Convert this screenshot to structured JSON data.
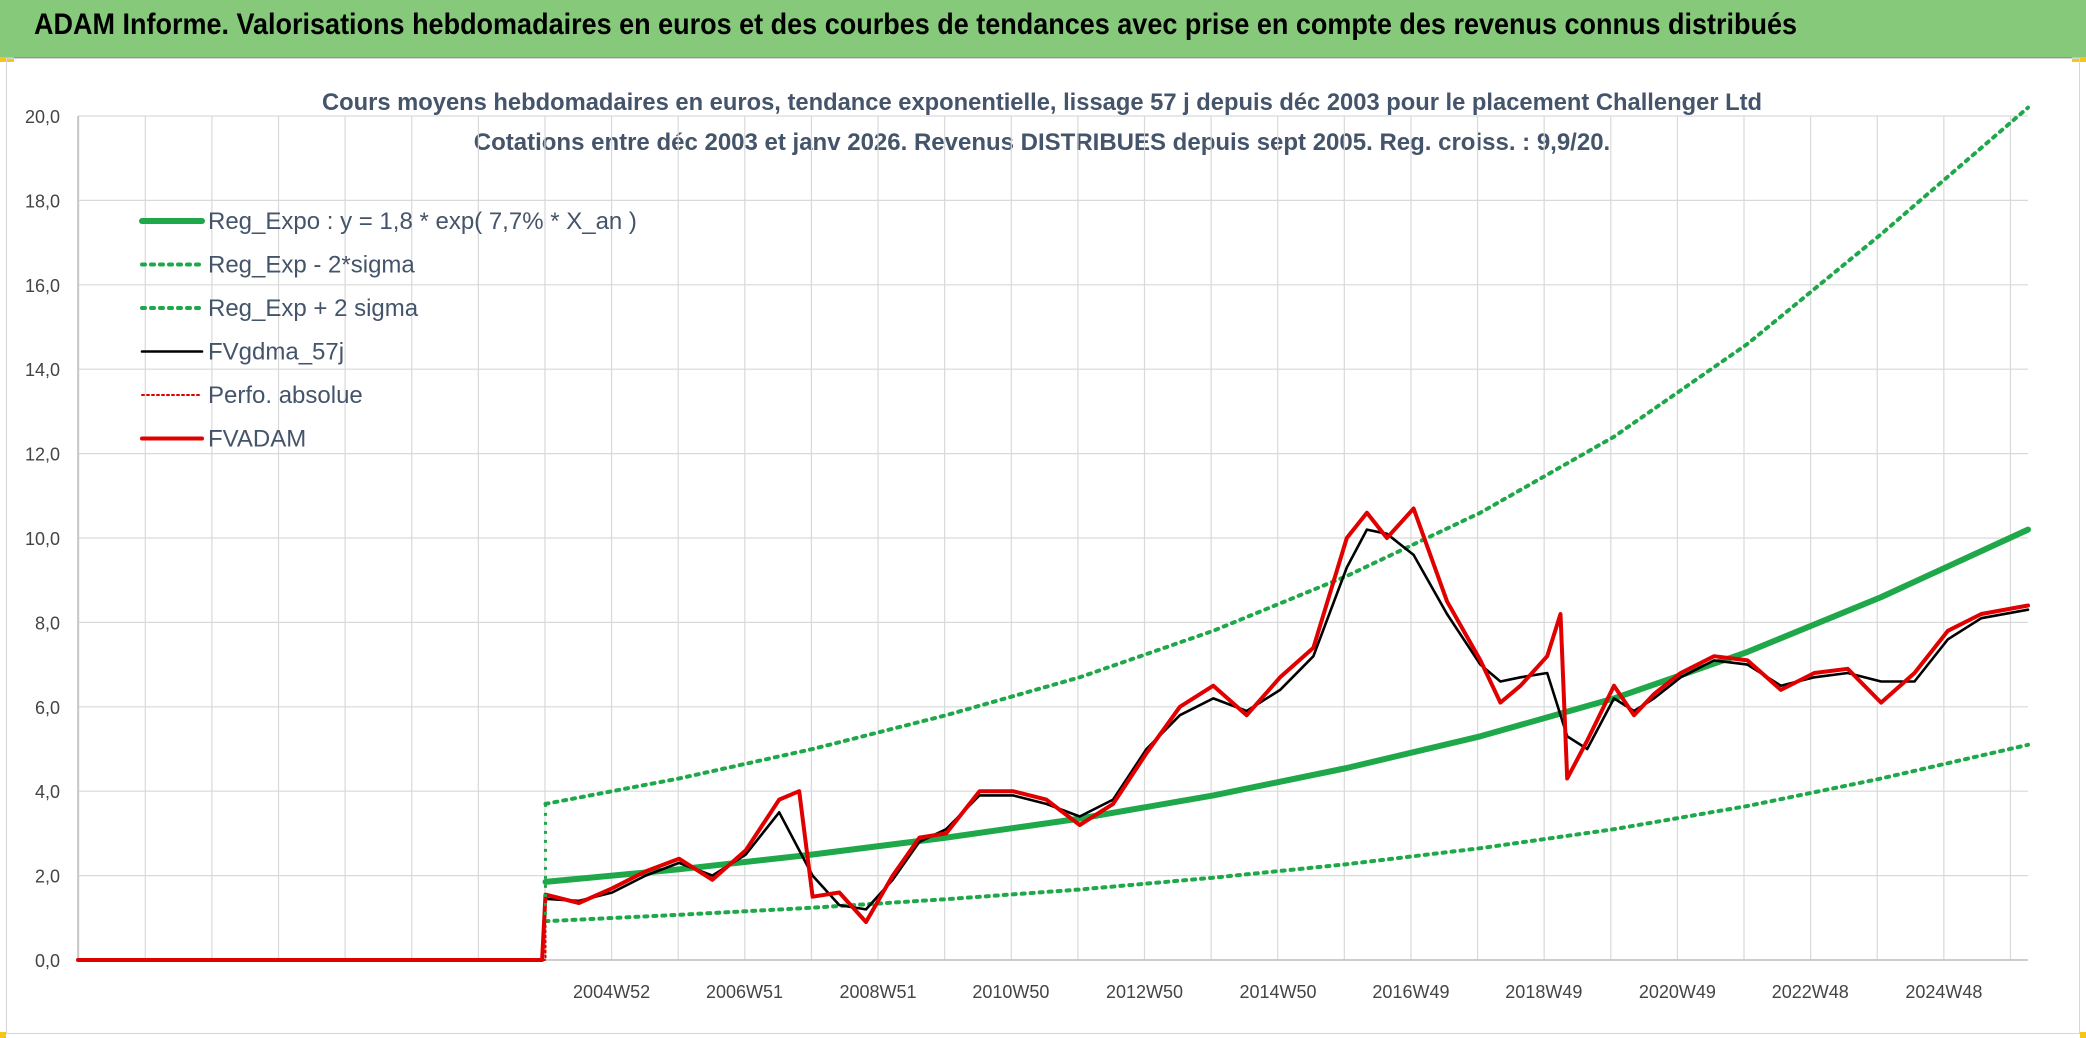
{
  "banner": {
    "title": "ADAM Informe. Valorisations hebdomadaires en euros et des courbes de tendances avec prise en compte des revenus connus distribués"
  },
  "colors": {
    "banner_bg": "#86c97a",
    "reg_expo": "#1fa84a",
    "fvgdma": "#000000",
    "fvadam": "#e00000",
    "perfo": "#e00000",
    "grid": "#d9d9d9"
  },
  "chart_data": {
    "type": "line",
    "title": "Cours moyens hebdomadaires en euros, tendance exponentielle, lissage 57 j depuis déc 2003 pour le placement Challenger Ltd",
    "subtitle": "Cotations entre déc 2003 et janv 2026. Revenus DISTRIBUES depuis sept 2005. Reg. croiss. : 9,9/20.",
    "xlabel": "",
    "ylabel": "",
    "ylim": [
      0,
      20
    ],
    "yticks": [
      "0,0",
      "2,0",
      "4,0",
      "6,0",
      "8,0",
      "10,0",
      "12,0",
      "14,0",
      "16,0",
      "18,0",
      "20,0"
    ],
    "xlim": [
      1997.0,
      2026.2
    ],
    "xtick_labels": [
      "2004W52",
      "2006W51",
      "2008W51",
      "2010W50",
      "2012W50",
      "2014W50",
      "2016W49",
      "2018W49",
      "2020W49",
      "2022W48",
      "2024W48"
    ],
    "xtick_positions": [
      2004.99,
      2006.98,
      2008.98,
      2010.97,
      2012.97,
      2014.97,
      2016.96,
      2018.95,
      2020.95,
      2022.94,
      2024.94
    ],
    "grid": true,
    "legend_position": "top-left",
    "start_year": 2004.0,
    "series": [
      {
        "name": "Reg_Expo : y = 1,8 * exp( 7,7% *  X_an )",
        "style": "solid-thick",
        "color": "#1fa84a",
        "x": [
          2004.0,
          2006.0,
          2008.0,
          2010.0,
          2012.0,
          2014.0,
          2016.0,
          2018.0,
          2020.0,
          2022.0,
          2024.0,
          2026.2
        ],
        "y": [
          1.85,
          2.15,
          2.5,
          2.9,
          3.35,
          3.9,
          4.55,
          5.3,
          6.2,
          7.3,
          8.6,
          10.2
        ]
      },
      {
        "name": "Reg_Exp - 2*sigma",
        "style": "dotted",
        "color": "#1fa84a",
        "x": [
          2004.0,
          2006.0,
          2008.0,
          2010.0,
          2012.0,
          2014.0,
          2016.0,
          2018.0,
          2020.0,
          2022.0,
          2024.0,
          2026.2
        ],
        "y": [
          0.92,
          1.07,
          1.24,
          1.44,
          1.67,
          1.95,
          2.27,
          2.65,
          3.1,
          3.65,
          4.3,
          5.1
        ]
      },
      {
        "name": "Reg_Exp + 2 sigma",
        "style": "dotted",
        "color": "#1fa84a",
        "x": [
          2004.0,
          2006.0,
          2008.0,
          2010.0,
          2012.0,
          2014.0,
          2016.0,
          2018.0,
          2020.0,
          2022.0,
          2024.0,
          2026.2
        ],
        "y": [
          3.7,
          4.3,
          5.0,
          5.8,
          6.7,
          7.8,
          9.1,
          10.6,
          12.4,
          14.6,
          17.2,
          20.2
        ]
      },
      {
        "name": "FVgdma_57j",
        "style": "solid",
        "color": "#000000",
        "x": [
          2004.0,
          2004.5,
          2005.0,
          2005.5,
          2006.0,
          2006.5,
          2007.0,
          2007.5,
          2008.0,
          2008.4,
          2008.8,
          2009.2,
          2009.6,
          2010.0,
          2010.5,
          2011.0,
          2011.5,
          2012.0,
          2012.5,
          2013.0,
          2013.5,
          2014.0,
          2014.5,
          2015.0,
          2015.5,
          2016.0,
          2016.3,
          2016.6,
          2017.0,
          2017.5,
          2018.0,
          2018.3,
          2018.6,
          2019.0,
          2019.3,
          2019.6,
          2020.0,
          2020.3,
          2020.6,
          2021.0,
          2021.5,
          2022.0,
          2022.5,
          2023.0,
          2023.5,
          2024.0,
          2024.5,
          2025.0,
          2025.5,
          2026.2
        ],
        "y": [
          1.45,
          1.4,
          1.6,
          2.0,
          2.3,
          2.0,
          2.5,
          3.5,
          2.0,
          1.3,
          1.2,
          1.9,
          2.8,
          3.1,
          3.9,
          3.9,
          3.7,
          3.4,
          3.8,
          5.0,
          5.8,
          6.2,
          5.9,
          6.4,
          7.2,
          9.3,
          10.2,
          10.1,
          9.6,
          8.2,
          7.0,
          6.6,
          6.7,
          6.8,
          5.3,
          5.0,
          6.2,
          5.9,
          6.2,
          6.7,
          7.1,
          7.0,
          6.5,
          6.7,
          6.8,
          6.6,
          6.6,
          7.6,
          8.1,
          8.3
        ]
      },
      {
        "name": "Perfo. absolue",
        "style": "dotted",
        "color": "#e00000",
        "x": [
          1997.0,
          2004.0,
          2004.0
        ],
        "y": [
          0.0,
          0.0,
          1.5
        ]
      },
      {
        "name": "FVADAM",
        "style": "solid-thick",
        "color": "#e00000",
        "x": [
          1997.0,
          2003.95,
          2004.0,
          2004.5,
          2005.0,
          2005.5,
          2006.0,
          2006.5,
          2007.0,
          2007.5,
          2007.8,
          2008.0,
          2008.4,
          2008.8,
          2009.2,
          2009.6,
          2010.0,
          2010.5,
          2011.0,
          2011.5,
          2012.0,
          2012.5,
          2013.0,
          2013.5,
          2014.0,
          2014.5,
          2015.0,
          2015.5,
          2016.0,
          2016.3,
          2016.6,
          2017.0,
          2017.5,
          2018.0,
          2018.3,
          2018.6,
          2019.0,
          2019.2,
          2019.3,
          2019.6,
          2020.0,
          2020.3,
          2020.6,
          2021.0,
          2021.5,
          2022.0,
          2022.5,
          2023.0,
          2023.5,
          2024.0,
          2024.5,
          2025.0,
          2025.5,
          2026.2
        ],
        "y": [
          0.0,
          0.0,
          1.55,
          1.35,
          1.7,
          2.1,
          2.4,
          1.9,
          2.6,
          3.8,
          4.0,
          1.5,
          1.6,
          0.9,
          2.0,
          2.9,
          3.0,
          4.0,
          4.0,
          3.8,
          3.2,
          3.7,
          4.9,
          6.0,
          6.5,
          5.8,
          6.7,
          7.4,
          10.0,
          10.6,
          10.0,
          10.7,
          8.5,
          7.1,
          6.1,
          6.5,
          7.2,
          8.2,
          4.3,
          5.2,
          6.5,
          5.8,
          6.3,
          6.8,
          7.2,
          7.1,
          6.4,
          6.8,
          6.9,
          6.1,
          6.8,
          7.8,
          8.2,
          8.4
        ]
      }
    ]
  }
}
